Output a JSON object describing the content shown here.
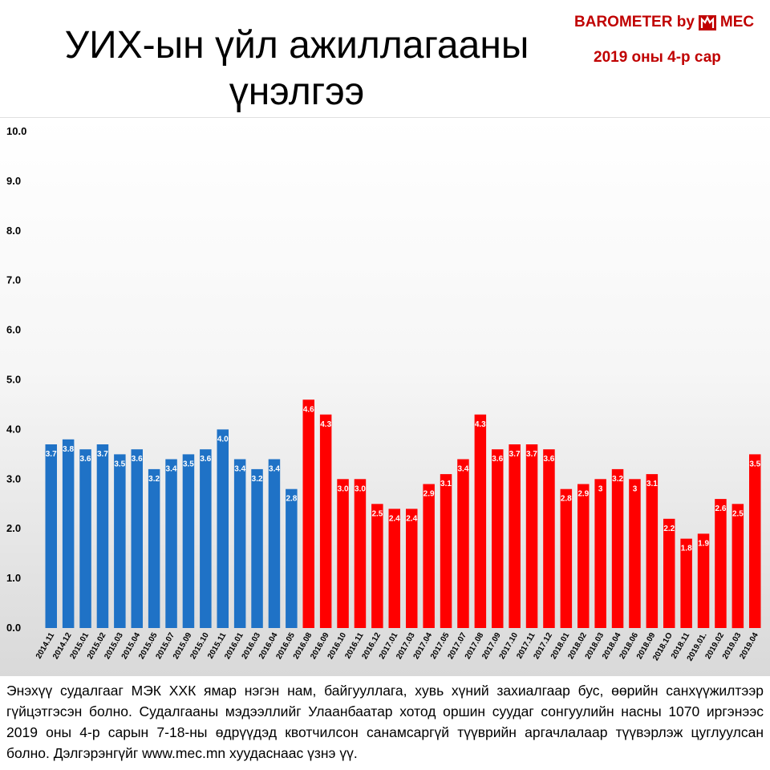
{
  "header": {
    "title_line1": "УИХ-ын үйл ажиллагааны",
    "title_line2": "үнэлгээ",
    "brand": "BAROMETER by",
    "brand_name": "MEC",
    "subtitle": "2019 оны 4-р сар"
  },
  "footnote": "Энэхүү судалгааг МЭК ХХК ямар нэгэн нам, байгууллага, хувь хүний захиалгаар бус, өөрийн санхүүжилтээр гүйцэтгэсэн болно. Судалгааны мэдээллийг Улаанбаатар хотод оршин суудаг сонгуулийн насны 1070 иргэнээс 2019 оны 4-р сарын 7-18-ны өдрүүдэд квотчилсон санамсаргүй түүврийн аргачлалаар түүвэрлэж цуглуулсан болно. Дэлгэрэнгүйг www.mec.mn хуудаснаас үзнэ үү.",
  "colors": {
    "blue": "#1f72c6",
    "red": "#ff0000",
    "brand": "#c00000"
  },
  "chart_data": {
    "type": "bar",
    "title": "",
    "xlabel": "",
    "ylabel": "",
    "ylim": [
      0,
      10
    ],
    "yticks": [
      "0.0",
      "1.0",
      "2.0",
      "3.0",
      "4.0",
      "5.0",
      "6.0",
      "7.0",
      "8.0",
      "9.0",
      "10.0"
    ],
    "grid": false,
    "categories": [
      "2014.11",
      "2014.12",
      "2015.01",
      "2015.02",
      "2015.03",
      "2015.04",
      "2015.05",
      "2015.07",
      "2015.09",
      "2015.10",
      "2015.11",
      "2016.01",
      "2016.03",
      "2016.04",
      "2016.05",
      "2016.08",
      "2016.09",
      "2016.10",
      "2016.11",
      "2016.12",
      "2017.01",
      "2017.03",
      "2017.04",
      "2017.05",
      "2017.07",
      "2017.08",
      "2017.09",
      "2017.10",
      "2017.11",
      "2017.12",
      "2018.01",
      "2018.02",
      "2018.03",
      "2018.04",
      "2018.06",
      "2018.09",
      "2018.1O",
      "2018.11",
      "2019.01.",
      "2019.02",
      "2019.03",
      "2019.04"
    ],
    "values": [
      3.7,
      3.8,
      3.6,
      3.7,
      3.5,
      3.6,
      3.2,
      3.4,
      3.5,
      3.6,
      4.0,
      3.4,
      3.2,
      3.4,
      2.8,
      4.6,
      4.3,
      3.0,
      3.0,
      2.5,
      2.4,
      2.4,
      2.9,
      3.1,
      3.4,
      4.3,
      3.6,
      3.7,
      3.7,
      3.6,
      2.8,
      2.9,
      3.0,
      3.2,
      3.0,
      3.1,
      2.2,
      1.8,
      1.9,
      2.6,
      2.5,
      3.5
    ],
    "labels": [
      "3.7",
      "3.8",
      "3.6",
      "3.7",
      "3.5",
      "3.6",
      "3.2",
      "3.4",
      "3.5",
      "3.6",
      "4.0",
      "3.4",
      "3.2",
      "3.4",
      "2.8",
      "4.6",
      "4.3",
      "3.0",
      "3.0",
      "2.5",
      "2.4",
      "2.4",
      "2.9",
      "3.1",
      "3.4",
      "4.3",
      "3.6",
      "3.7",
      "3.7",
      "3.6",
      "2.8",
      "2.9",
      "3",
      "3.2",
      "3",
      "3.1",
      "2.2",
      "1.8",
      "1.9",
      "2.6",
      "2.5",
      "3.5"
    ],
    "series_colors": [
      "blue",
      "blue",
      "blue",
      "blue",
      "blue",
      "blue",
      "blue",
      "blue",
      "blue",
      "blue",
      "blue",
      "blue",
      "blue",
      "blue",
      "blue",
      "red",
      "red",
      "red",
      "red",
      "red",
      "red",
      "red",
      "red",
      "red",
      "red",
      "red",
      "red",
      "red",
      "red",
      "red",
      "red",
      "red",
      "red",
      "red",
      "red",
      "red",
      "red",
      "red",
      "red",
      "red",
      "red",
      "red"
    ]
  }
}
